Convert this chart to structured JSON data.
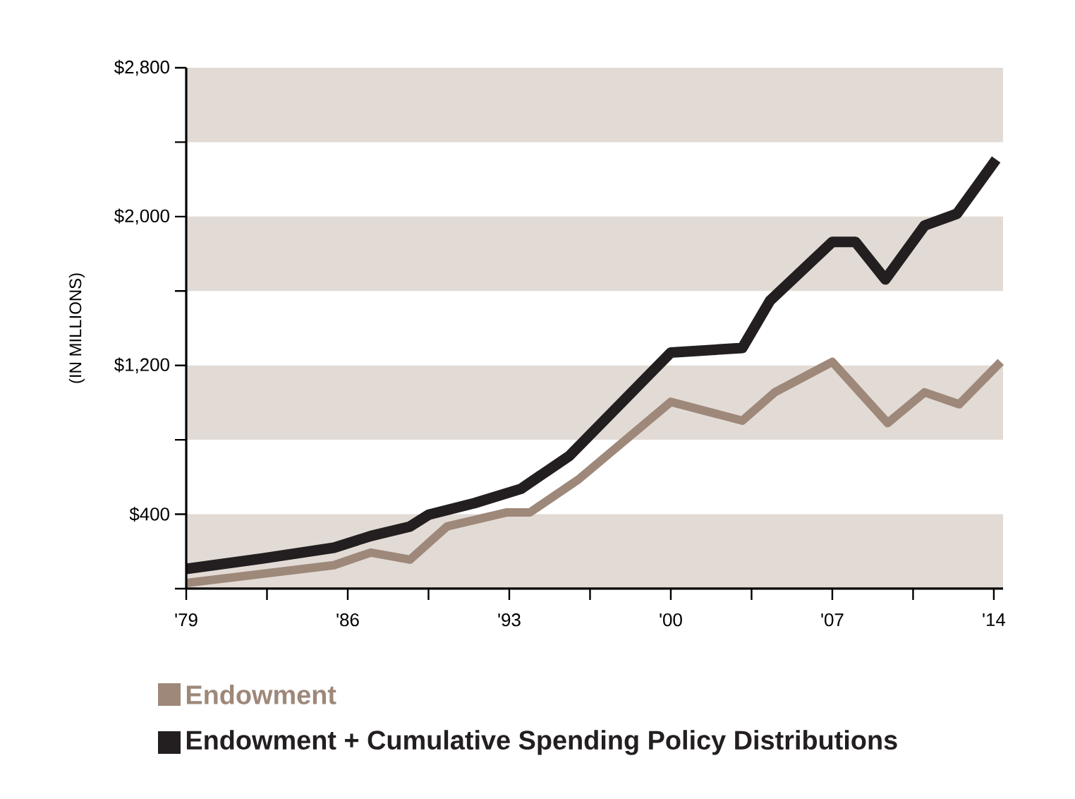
{
  "chart_data": {
    "type": "line",
    "ylabel": "(IN MILLIONS)",
    "xlim": [
      1979,
      2014.4
    ],
    "ylim": [
      0,
      2800
    ],
    "xticks": [
      {
        "value": 1979,
        "label": "'79"
      },
      {
        "value": 1982.5,
        "label": null
      },
      {
        "value": 1986,
        "label": "'86"
      },
      {
        "value": 1989.5,
        "label": null
      },
      {
        "value": 1993,
        "label": "'93"
      },
      {
        "value": 1996.5,
        "label": null
      },
      {
        "value": 2000,
        "label": "'00"
      },
      {
        "value": 2003.5,
        "label": null
      },
      {
        "value": 2007,
        "label": "'07"
      },
      {
        "value": 2010.5,
        "label": null
      },
      {
        "value": 2014,
        "label": "'14"
      }
    ],
    "yticks": [
      {
        "value": 0,
        "label": null
      },
      {
        "value": 400,
        "label": "$400"
      },
      {
        "value": 800,
        "label": null
      },
      {
        "value": 1200,
        "label": "$1,200"
      },
      {
        "value": 1600,
        "label": null
      },
      {
        "value": 2000,
        "label": "$2,000"
      },
      {
        "value": 2400,
        "label": null
      },
      {
        "value": 2800,
        "label": "$2,800"
      }
    ],
    "bands": [
      {
        "axis": "y",
        "from": 0,
        "to": 400,
        "color": "#e2dbd5"
      },
      {
        "axis": "y",
        "from": 800,
        "to": 1200,
        "color": "#e2dbd5"
      },
      {
        "axis": "y",
        "from": 1600,
        "to": 2000,
        "color": "#e2dbd5"
      },
      {
        "axis": "y",
        "from": 2400,
        "to": 2800,
        "color": "#e2dbd5"
      }
    ],
    "legend": "bottom",
    "series": [
      {
        "name": "Endowment",
        "color": "#9e887a",
        "x": [
          1979,
          1985.4,
          1987,
          1988.7,
          1990.3,
          1992.9,
          1993.9,
          1996,
          2000,
          2003.1,
          2004.5,
          2007,
          2009.4,
          2011,
          2012.5,
          2014.3
        ],
        "values": [
          30,
          126,
          194,
          156,
          334,
          410,
          410,
          587,
          1004,
          903,
          1055,
          1219,
          890,
          1055,
          991,
          1219
        ]
      },
      {
        "name": "Endowment + Cumulative Spending Policy Distributions",
        "color": "#231f20",
        "x": [
          1979,
          1982.3,
          1985.4,
          1987,
          1988.7,
          1989.5,
          1991.5,
          1993.5,
          1994.1,
          1995.6,
          2000,
          2003.1,
          2004.3,
          2007,
          2008,
          2009.3,
          2011,
          2012.4,
          2014.1
        ],
        "values": [
          106,
          162,
          220,
          283,
          334,
          397,
          460,
          536,
          587,
          713,
          1269,
          1294,
          1548,
          1864,
          1864,
          1662,
          1952,
          2015,
          2307
        ]
      }
    ]
  }
}
